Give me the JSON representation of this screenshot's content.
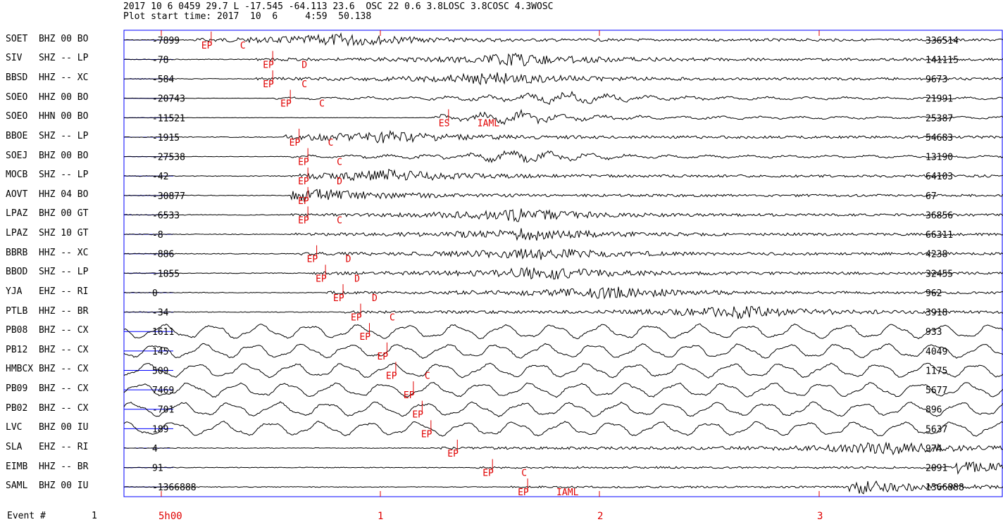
{
  "header": {
    "line1": "2017 10 6 0459 29.7 L -17.545 -64.113 23.6  OSC 22 0.6 3.8LOSC 3.8COSC 4.3WOSC",
    "line2": "Plot start time: 2017  10  6     4:59  50.138"
  },
  "colors": {
    "trace": "#000000",
    "pick": "#e00000",
    "axis": "#0000ff"
  },
  "footer": {
    "event_label": "Event #",
    "event_number": "1"
  },
  "time_axis": {
    "ticks": [
      "5h00",
      "1",
      "2",
      "3"
    ]
  },
  "traces": [
    {
      "station": "SOET",
      "comp": "BHZ 00 BO",
      "left": "-7899",
      "right": "336514",
      "picks": [
        "EP",
        "C"
      ],
      "onset": 0.08,
      "style": "burst",
      "peak": 0.25
    },
    {
      "station": "SIV",
      "comp": "SHZ -- LP",
      "left": "-78",
      "right": "141115",
      "picks": [
        "EP",
        "D"
      ],
      "onset": 0.15,
      "style": "hf",
      "peak": 0.45
    },
    {
      "station": "BBSD",
      "comp": "HHZ -- XC",
      "left": "-584",
      "right": "9673",
      "picks": [
        "EP",
        "C"
      ],
      "onset": 0.15,
      "style": "hf",
      "peak": 0.42
    },
    {
      "station": "SOEO",
      "comp": "HHZ 00 BO",
      "left": "-20743",
      "right": "21991",
      "picks": [
        "EP",
        "C"
      ],
      "onset": 0.17,
      "style": "mixed",
      "peak": 0.5
    },
    {
      "station": "SOEO",
      "comp": "HHN 00 BO",
      "left": "-11521",
      "right": "25387",
      "picks": [
        "ES",
        "IAML"
      ],
      "onset": 0.35,
      "style": "mixed",
      "peak": 0.45
    },
    {
      "station": "BBOE",
      "comp": "SHZ -- LP",
      "left": "-1915",
      "right": "54683",
      "picks": [
        "EP",
        "C"
      ],
      "onset": 0.18,
      "style": "hf",
      "peak": 0.3
    },
    {
      "station": "SOEJ",
      "comp": "BHZ 00 BO",
      "left": "-27538",
      "right": "13190",
      "picks": [
        "EP",
        "C"
      ],
      "onset": 0.19,
      "style": "mixed",
      "peak": 0.45
    },
    {
      "station": "MOCB",
      "comp": "SHZ -- LP",
      "left": "-42",
      "right": "64103",
      "picks": [
        "EP",
        "D"
      ],
      "onset": 0.19,
      "style": "hf",
      "peak": 0.3
    },
    {
      "station": "AOVT",
      "comp": "HHZ 04 BO",
      "left": "-30877",
      "right": "67",
      "picks": [
        "EP"
      ],
      "onset": 0.19,
      "style": "hf",
      "peak": 0.22
    },
    {
      "station": "LPAZ",
      "comp": "BHZ 00 GT",
      "left": "-6533",
      "right": "36856",
      "picks": [
        "EP",
        "C"
      ],
      "onset": 0.19,
      "style": "hf",
      "peak": 0.45
    },
    {
      "station": "LPAZ",
      "comp": "SHZ 10 GT",
      "left": "-8",
      "right": "66311",
      "picks": [],
      "onset": 0.19,
      "style": "hf",
      "peak": 0.46
    },
    {
      "station": "BBRB",
      "comp": "HHZ -- XC",
      "left": "-886",
      "right": "4238",
      "picks": [
        "EP",
        "D"
      ],
      "onset": 0.2,
      "style": "hf",
      "peak": 0.48
    },
    {
      "station": "BBOD",
      "comp": "SHZ -- LP",
      "left": "-1855",
      "right": "32455",
      "picks": [
        "EP",
        "D"
      ],
      "onset": 0.21,
      "style": "hf",
      "peak": 0.48
    },
    {
      "station": "YJA",
      "comp": "EHZ -- RI",
      "left": "0",
      "right": "962",
      "picks": [
        "EP",
        "D"
      ],
      "onset": 0.23,
      "style": "hf",
      "peak": 0.55
    },
    {
      "station": "PTLB",
      "comp": "HHZ -- BR",
      "left": "-34",
      "right": "3918",
      "picks": [
        "EP",
        "C"
      ],
      "onset": 0.25,
      "style": "hf",
      "peak": 0.7
    },
    {
      "station": "PB08",
      "comp": "BHZ -- CX",
      "left": "1611",
      "right": "933",
      "picks": [
        "EP"
      ],
      "onset": 0.26,
      "style": "lf",
      "peak": 0.5
    },
    {
      "station": "PB12",
      "comp": "BHZ -- CX",
      "left": "145",
      "right": "4049",
      "picks": [
        "EP"
      ],
      "onset": 0.28,
      "style": "lf",
      "peak": 0.5
    },
    {
      "station": "HMBCX",
      "comp": "BHZ -- CX",
      "left": "509",
      "right": "1175",
      "picks": [
        "EP",
        "C"
      ],
      "onset": 0.29,
      "style": "lf",
      "peak": 0.5
    },
    {
      "station": "PB09",
      "comp": "BHZ -- CX",
      "left": "7469",
      "right": "5677",
      "picks": [
        "EP"
      ],
      "onset": 0.31,
      "style": "lf",
      "peak": 0.5
    },
    {
      "station": "PB02",
      "comp": "BHZ -- CX",
      "left": "-701",
      "right": "896",
      "picks": [
        "EP"
      ],
      "onset": 0.32,
      "style": "lf",
      "peak": 0.5
    },
    {
      "station": "LVC",
      "comp": "BHZ 00 IU",
      "left": "189",
      "right": "5637",
      "picks": [
        "EP"
      ],
      "onset": 0.33,
      "style": "lf",
      "peak": 0.5
    },
    {
      "station": "SLA",
      "comp": "EHZ -- RI",
      "left": "4",
      "right": "974",
      "picks": [
        "EP"
      ],
      "onset": 0.36,
      "style": "hf",
      "peak": 0.87
    },
    {
      "station": "EIMB",
      "comp": "HHZ -- BR",
      "left": "91",
      "right": "2091",
      "picks": [
        "EP",
        "C"
      ],
      "onset": 0.4,
      "style": "late",
      "peak": 0.96
    },
    {
      "station": "SAML",
      "comp": "BHZ 00 IU",
      "left": "-1366888",
      "right": "1366888",
      "picks": [
        "EP",
        "IAML"
      ],
      "onset": 0.44,
      "style": "late",
      "peak": 0.84
    }
  ]
}
